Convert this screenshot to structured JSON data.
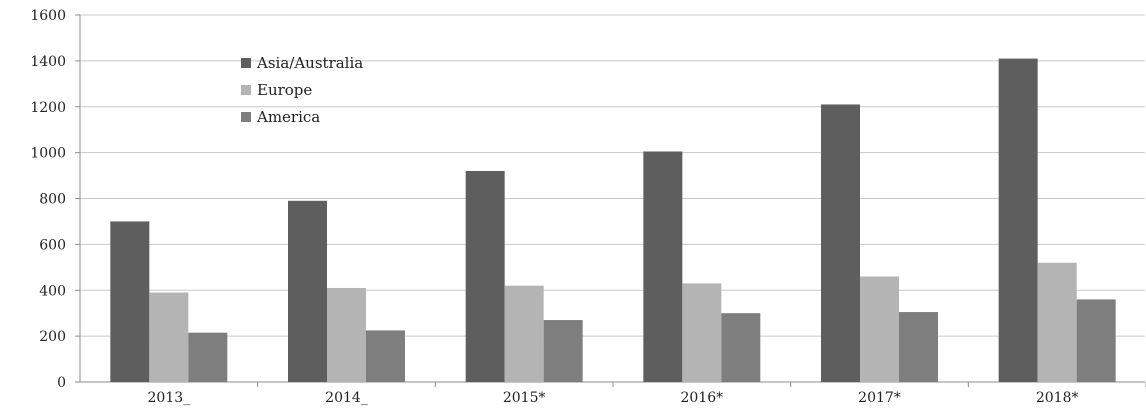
{
  "chart_data": {
    "type": "bar",
    "categories": [
      "2013_",
      "2014_",
      "2015*",
      "2016*",
      "2017*",
      "2018*"
    ],
    "series": [
      {
        "name": "Asia/Australia",
        "values": [
          700,
          790,
          920,
          1005,
          1210,
          1410
        ],
        "color": "#5e5e5e"
      },
      {
        "name": "Europe",
        "values": [
          390,
          410,
          420,
          430,
          460,
          520
        ],
        "color": "#b4b4b4"
      },
      {
        "name": "America",
        "values": [
          215,
          225,
          270,
          300,
          305,
          360
        ],
        "color": "#7e7e7e"
      }
    ],
    "title": "",
    "xlabel": "",
    "ylabel": "",
    "ylim": [
      0,
      1600
    ],
    "yticks": [
      0,
      200,
      400,
      600,
      800,
      1000,
      1200,
      1400,
      1600
    ],
    "grid": true,
    "legend_position": "top-left"
  }
}
